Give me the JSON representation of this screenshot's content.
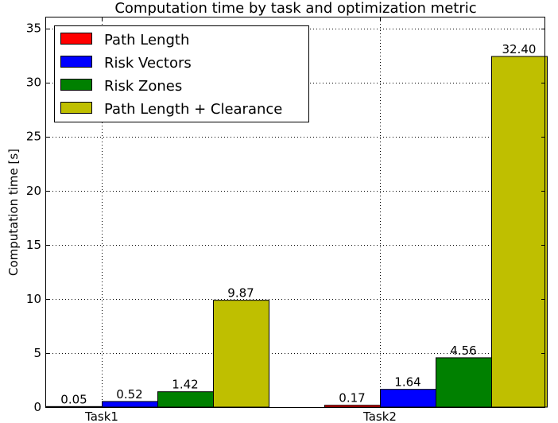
{
  "chart_data": {
    "type": "bar",
    "title": "Computation time by task and optimization metric",
    "xlabel": "",
    "ylabel": "Computation time [s]",
    "categories": [
      "Task1",
      "Task2"
    ],
    "ylim": [
      0,
      36
    ],
    "yticks": [
      0,
      5,
      10,
      15,
      20,
      25,
      30,
      35
    ],
    "grid": true,
    "legend_position": "top-left",
    "series": [
      {
        "name": "Path Length",
        "color": "#ff0000",
        "values": [
          0.05,
          0.17
        ],
        "labels": [
          "0.05",
          "0.17"
        ]
      },
      {
        "name": "Risk Vectors",
        "color": "#0000ff",
        "values": [
          0.52,
          1.64
        ],
        "labels": [
          "0.52",
          "1.64"
        ]
      },
      {
        "name": "Risk Zones",
        "color": "#008000",
        "values": [
          1.42,
          4.56
        ],
        "labels": [
          "1.42",
          "4.56"
        ]
      },
      {
        "name": "Path Length + Clearance",
        "color": "#bfbf00",
        "values": [
          9.87,
          32.4
        ],
        "labels": [
          "9.87",
          "32.40"
        ]
      }
    ]
  }
}
